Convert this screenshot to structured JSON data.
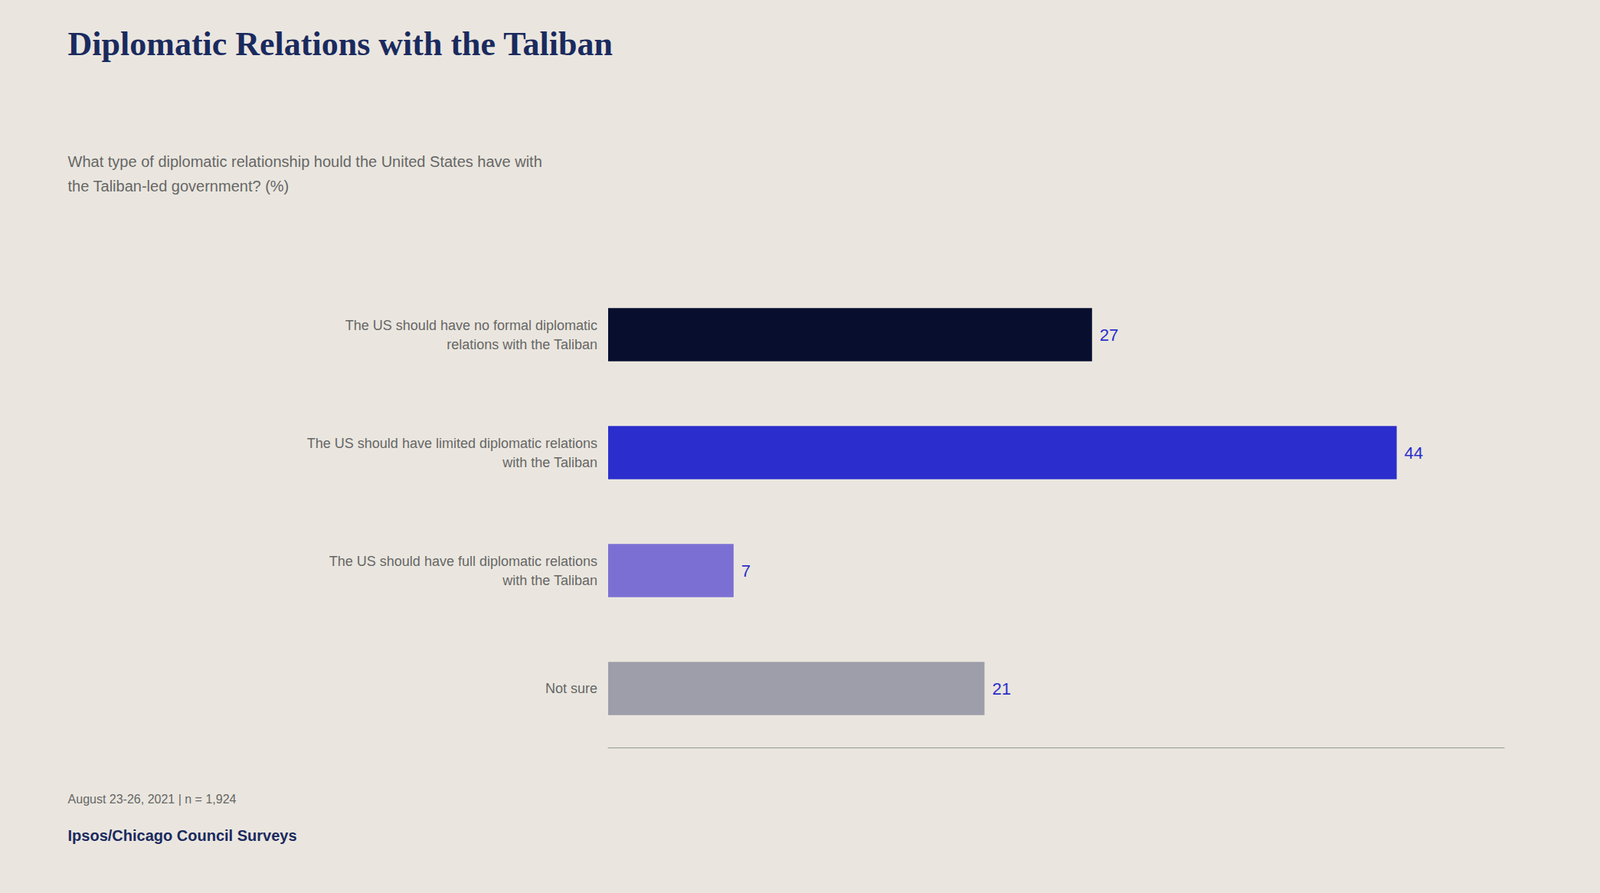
{
  "chart_data": {
    "type": "bar",
    "title": "Diplomatic Relations with the Taliban",
    "subtitle": "What type of diplomatic relationship hould the United States have with\nthe Taliban-led government? (%)",
    "annotations": [
      "August 23-26, 2021 | n = 1,924",
      "Ipsos/Chicago Council Surveys"
    ],
    "orientation": "horizontal",
    "categories": [
      "The US should have no formal diplomatic\nrelations with the Taliban",
      "The US should have limited diplomatic relations\nwith the Taliban",
      "The US should have full diplomatic relations\nwith the Taliban",
      "Not sure"
    ],
    "values": [
      27,
      44,
      7,
      21
    ],
    "colors": [
      "#080e2e",
      "#2b2ecc",
      "#7c6fd4",
      "#9e9eaa"
    ],
    "xlim": [
      0,
      50
    ],
    "xticks": [],
    "tick_labels": "y",
    "data_labels": true,
    "grid": false
  }
}
